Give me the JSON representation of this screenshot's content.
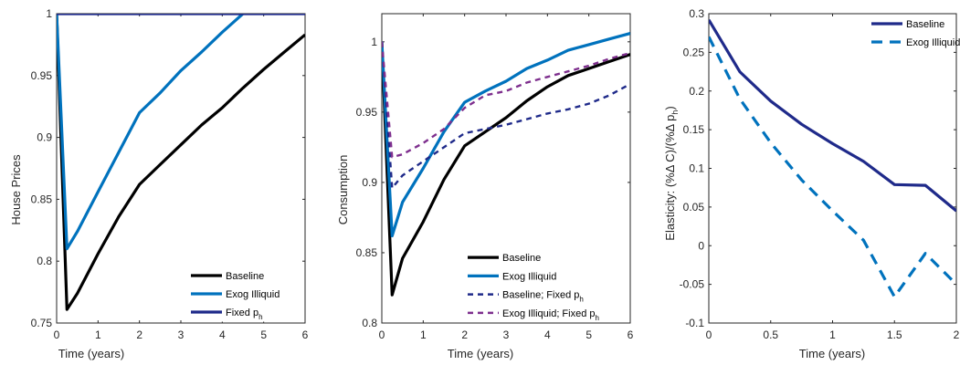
{
  "chart_data": [
    {
      "type": "line",
      "xlabel": "Time (years)",
      "ylabel": "House Prices",
      "xlim": [
        0,
        6
      ],
      "ylim": [
        0.75,
        1.0
      ],
      "xticks": [
        "0",
        "1",
        "2",
        "3",
        "4",
        "5",
        "6"
      ],
      "yticks": [
        "0.75",
        "0.8",
        "0.85",
        "0.9",
        "0.95",
        "1"
      ],
      "grid": false,
      "legend_position": "bottom-right",
      "series": [
        {
          "name": "Baseline",
          "color": "#000000",
          "style": "solid",
          "x": [
            0,
            0.25,
            0.5,
            1,
            1.5,
            2,
            2.5,
            3,
            3.5,
            4,
            4.5,
            5,
            5.5,
            6
          ],
          "y": [
            1,
            0.761,
            0.774,
            0.806,
            0.836,
            0.862,
            0.878,
            0.894,
            0.91,
            0.924,
            0.94,
            0.955,
            0.969,
            0.983
          ]
        },
        {
          "name": "Exog Illiquid",
          "color": "#0072BD",
          "style": "solid",
          "x": [
            0,
            0.25,
            0.5,
            1,
            1.5,
            2,
            2.5,
            3,
            3.5,
            4,
            4.5,
            5,
            5.2
          ],
          "y": [
            1,
            0.81,
            0.824,
            0.856,
            0.888,
            0.92,
            0.936,
            0.954,
            0.969,
            0.985,
            1.0,
            1.02,
            1.03
          ]
        },
        {
          "name": "Fixed p",
          "name_sub": "h",
          "color": "#1F2A8A",
          "style": "solid",
          "x": [
            0,
            6
          ],
          "y": [
            1,
            1
          ]
        }
      ]
    },
    {
      "type": "line",
      "xlabel": "Time (years)",
      "ylabel": "Consumption",
      "xlim": [
        0,
        6
      ],
      "ylim": [
        0.8,
        1.02
      ],
      "xticks": [
        "0",
        "1",
        "2",
        "3",
        "4",
        "5",
        "6"
      ],
      "yticks": [
        "0.8",
        "0.85",
        "0.9",
        "0.95",
        "1"
      ],
      "grid": false,
      "legend_position": "bottom-right",
      "series": [
        {
          "name": "Baseline",
          "color": "#000000",
          "style": "solid",
          "x": [
            0,
            0.25,
            0.5,
            1,
            1.5,
            2,
            2.5,
            3,
            3.5,
            4,
            4.5,
            5,
            5.5,
            6
          ],
          "y": [
            1,
            0.82,
            0.846,
            0.872,
            0.902,
            0.926,
            0.936,
            0.946,
            0.958,
            0.968,
            0.976,
            0.981,
            0.986,
            0.991
          ]
        },
        {
          "name": "Exog Illiquid",
          "color": "#0072BD",
          "style": "solid",
          "x": [
            0,
            0.25,
            0.5,
            1,
            1.5,
            2,
            2.5,
            3,
            3.5,
            4,
            4.5,
            5,
            5.5,
            6
          ],
          "y": [
            1,
            0.862,
            0.886,
            0.91,
            0.936,
            0.957,
            0.965,
            0.972,
            0.981,
            0.987,
            0.994,
            0.998,
            1.002,
            1.006
          ]
        },
        {
          "name": "Baseline; Fixed p",
          "name_sub": "h",
          "color": "#1F2A8A",
          "style": "dashed",
          "x": [
            0,
            0.25,
            0.5,
            1,
            1.5,
            2,
            2.5,
            3,
            3.5,
            4,
            4.5,
            5,
            5.5,
            6
          ],
          "y": [
            1,
            0.896,
            0.905,
            0.915,
            0.925,
            0.935,
            0.938,
            0.941,
            0.945,
            0.949,
            0.952,
            0.956,
            0.962,
            0.97
          ]
        },
        {
          "name": "Exog Illiquid; Fixed p",
          "name_sub": "h",
          "color": "#7E2F8E",
          "style": "dashed",
          "x": [
            0,
            0.25,
            0.5,
            1,
            1.5,
            2,
            2.5,
            3,
            3.5,
            4,
            4.5,
            5,
            5.5,
            6
          ],
          "y": [
            1,
            0.918,
            0.92,
            0.928,
            0.938,
            0.953,
            0.962,
            0.965,
            0.971,
            0.975,
            0.979,
            0.983,
            0.988,
            0.992
          ]
        }
      ]
    },
    {
      "type": "line",
      "xlabel": "Time (years)",
      "ylabel": "Elasticity: (%Δ C)/(%Δ p",
      "ylabel_sub": "h",
      "ylabel_close": ")",
      "xlim": [
        0,
        2
      ],
      "ylim": [
        -0.1,
        0.3
      ],
      "xticks": [
        "0",
        "0.5",
        "1",
        "1.5",
        "2"
      ],
      "yticks": [
        "-0.1",
        "-0.05",
        "0",
        "0.05",
        "0.1",
        "0.15",
        "0.2",
        "0.25",
        "0.3"
      ],
      "grid": false,
      "legend_position": "top-right",
      "series": [
        {
          "name": "Baseline",
          "color": "#1F2A8A",
          "style": "solid",
          "x": [
            0,
            0.25,
            0.5,
            0.75,
            1,
            1.25,
            1.5,
            1.75,
            2
          ],
          "y": [
            0.292,
            0.225,
            0.187,
            0.157,
            0.132,
            0.109,
            0.079,
            0.078,
            0.045
          ]
        },
        {
          "name": "Exog Illiquid",
          "color": "#0072BD",
          "style": "dashed",
          "x": [
            0,
            0.25,
            0.5,
            0.75,
            1,
            1.25,
            1.5,
            1.75,
            2
          ],
          "y": [
            0.27,
            0.19,
            0.133,
            0.085,
            0.045,
            0.007,
            -0.066,
            -0.01,
            -0.05
          ]
        }
      ]
    }
  ]
}
